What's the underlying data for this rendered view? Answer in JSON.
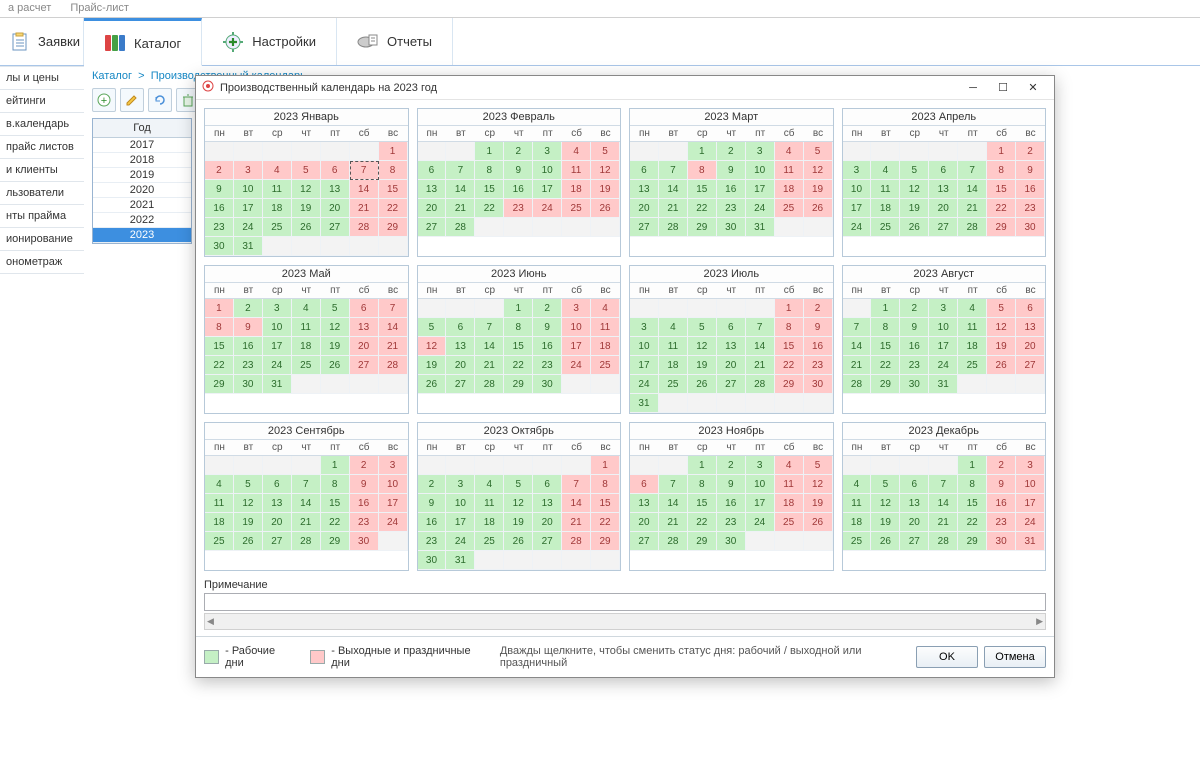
{
  "topmenu": {
    "item1": "а расчет",
    "item2": "Прайс-лист"
  },
  "tabs": {
    "requests": "Заявки",
    "catalog": "Каталог",
    "settings": "Настройки",
    "reports": "Отчеты"
  },
  "sidebar": [
    "лы и цены",
    "ейтинги",
    "в.календарь",
    "прайс листов",
    "и клиенты",
    "льзователи",
    "нты прайма",
    "ионирование",
    "онометраж"
  ],
  "breadcrumb": {
    "root": "Каталог",
    "sep": ">",
    "current": "Производственный календарь"
  },
  "yearcol": {
    "header": "Год",
    "rows": [
      "2017",
      "2018",
      "2019",
      "2020",
      "2021",
      "2022",
      "2023"
    ],
    "selected": "2023"
  },
  "modal": {
    "title": "Производственный календарь на 2023 год",
    "note_label": "Примечание",
    "legend_work": "- Рабочие дни",
    "legend_hol": "- Выходные и праздничные дни",
    "hint": "Дважды щелкните, чтобы сменить статус дня: рабочий / выходной или праздничный",
    "ok": "OK",
    "cancel": "Отмена"
  },
  "weekdays": [
    "пн",
    "вт",
    "ср",
    "чт",
    "пт",
    "сб",
    "вс"
  ],
  "colors": {
    "work": "#c5f0c5",
    "holiday": "#ffc9c9"
  },
  "selected_day": {
    "month": 0,
    "day": 7
  },
  "months": [
    {
      "title": "2023 Январь",
      "lead": 6,
      "days": 31,
      "hol": [
        1,
        2,
        3,
        4,
        5,
        6,
        7,
        8,
        14,
        15,
        21,
        22,
        28,
        29
      ]
    },
    {
      "title": "2023 Февраль",
      "lead": 2,
      "days": 28,
      "hol": [
        4,
        5,
        11,
        12,
        18,
        19,
        23,
        24,
        25,
        26
      ]
    },
    {
      "title": "2023 Март",
      "lead": 2,
      "days": 31,
      "hol": [
        4,
        5,
        8,
        11,
        12,
        18,
        19,
        25,
        26
      ]
    },
    {
      "title": "2023 Апрель",
      "lead": 5,
      "days": 30,
      "hol": [
        1,
        2,
        8,
        9,
        15,
        16,
        22,
        23,
        29,
        30
      ]
    },
    {
      "title": "2023 Май",
      "lead": 0,
      "days": 31,
      "hol": [
        1,
        6,
        7,
        8,
        9,
        13,
        14,
        20,
        21,
        27,
        28
      ]
    },
    {
      "title": "2023 Июнь",
      "lead": 3,
      "days": 30,
      "hol": [
        3,
        4,
        10,
        11,
        12,
        17,
        18,
        24,
        25
      ]
    },
    {
      "title": "2023 Июль",
      "lead": 5,
      "days": 31,
      "hol": [
        1,
        2,
        8,
        9,
        15,
        16,
        22,
        23,
        29,
        30
      ]
    },
    {
      "title": "2023 Август",
      "lead": 1,
      "days": 31,
      "hol": [
        5,
        6,
        12,
        13,
        19,
        20,
        26,
        27
      ]
    },
    {
      "title": "2023 Сентябрь",
      "lead": 4,
      "days": 30,
      "hol": [
        2,
        3,
        9,
        10,
        16,
        17,
        23,
        24,
        30
      ]
    },
    {
      "title": "2023 Октябрь",
      "lead": 6,
      "days": 31,
      "hol": [
        1,
        7,
        8,
        14,
        15,
        21,
        22,
        28,
        29
      ]
    },
    {
      "title": "2023 Ноябрь",
      "lead": 2,
      "days": 30,
      "hol": [
        4,
        5,
        6,
        11,
        12,
        18,
        19,
        25,
        26
      ]
    },
    {
      "title": "2023 Декабрь",
      "lead": 4,
      "days": 31,
      "hol": [
        2,
        3,
        9,
        10,
        16,
        17,
        23,
        24,
        30,
        31
      ]
    }
  ]
}
